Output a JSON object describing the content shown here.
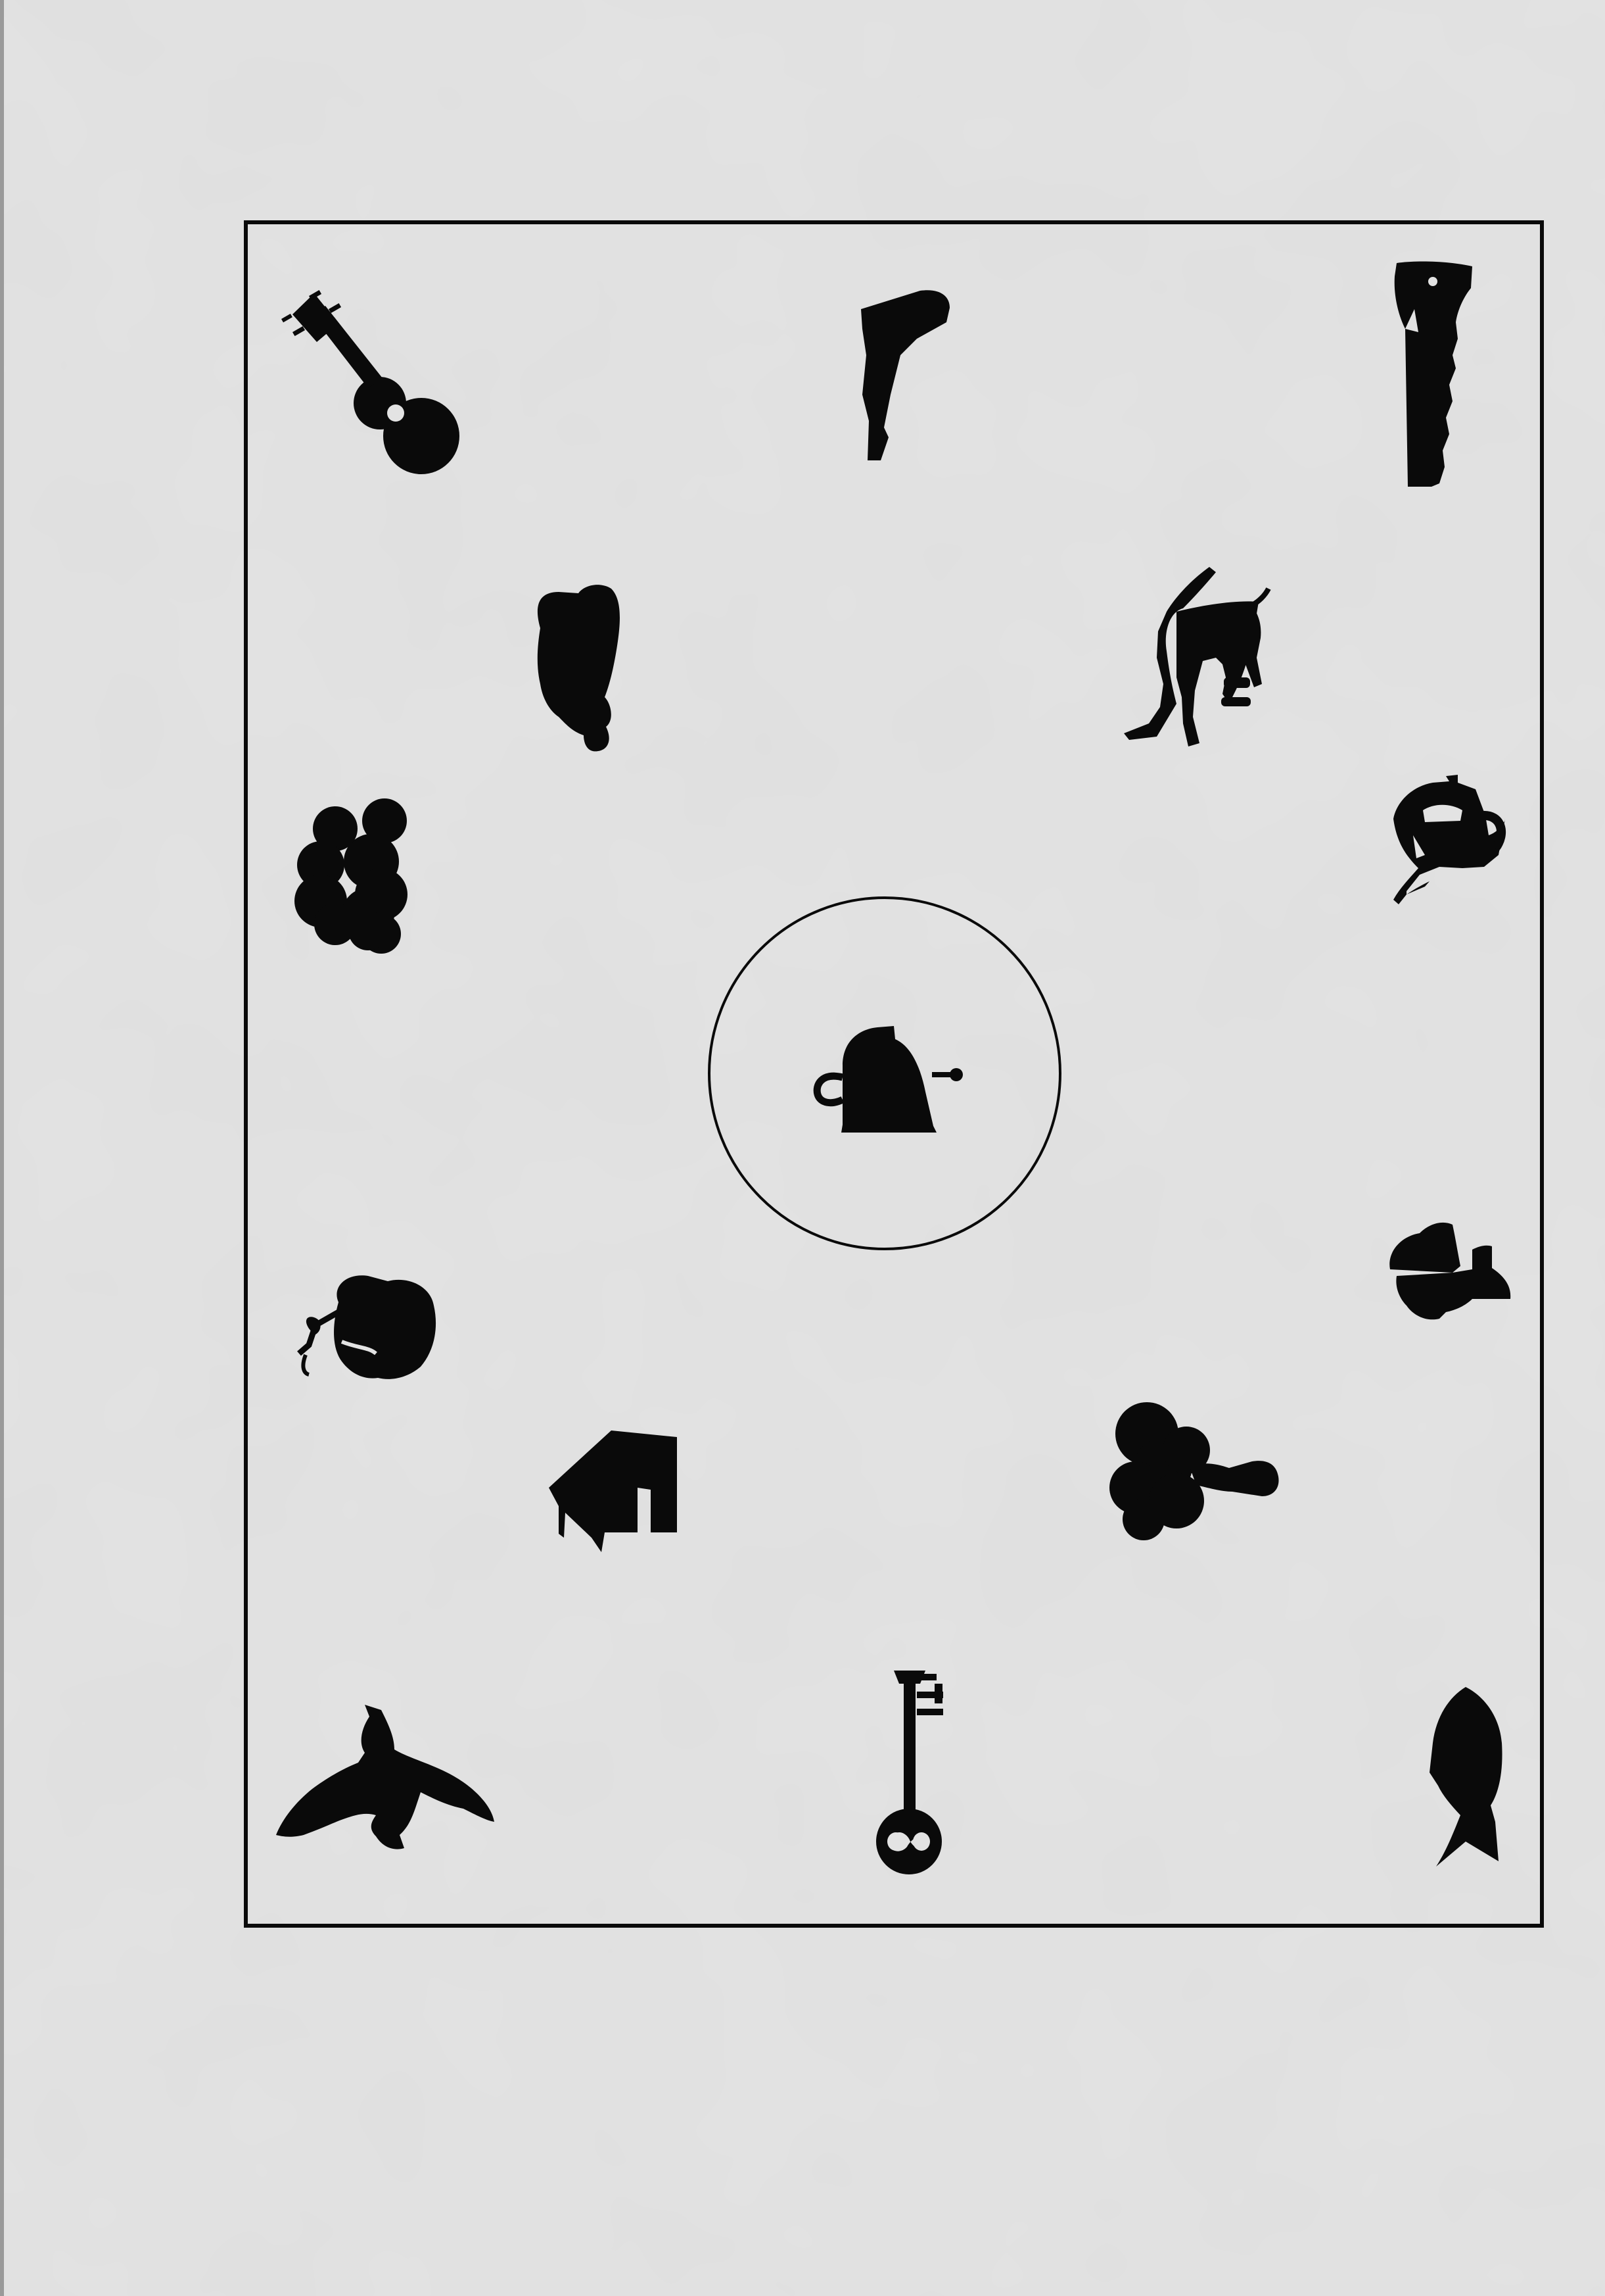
{
  "colors": {
    "paper": "#e3e3e3",
    "ink": "#0a0a0a"
  },
  "worksheet": {
    "center_figure": {
      "icon": "bell-icon",
      "circled": true
    },
    "figures": [
      {
        "icon": "guitar-icon"
      },
      {
        "icon": "pistol-icon"
      },
      {
        "icon": "saw-icon"
      },
      {
        "icon": "car-icon"
      },
      {
        "icon": "horse-icon"
      },
      {
        "icon": "cloud-icon"
      },
      {
        "icon": "teapot-icon"
      },
      {
        "icon": "lamp-icon"
      },
      {
        "icon": "apple-icon"
      },
      {
        "icon": "house-icon"
      },
      {
        "icon": "tree-icon"
      },
      {
        "icon": "bird-icon"
      },
      {
        "icon": "key-icon"
      },
      {
        "icon": "fish-icon"
      }
    ]
  }
}
